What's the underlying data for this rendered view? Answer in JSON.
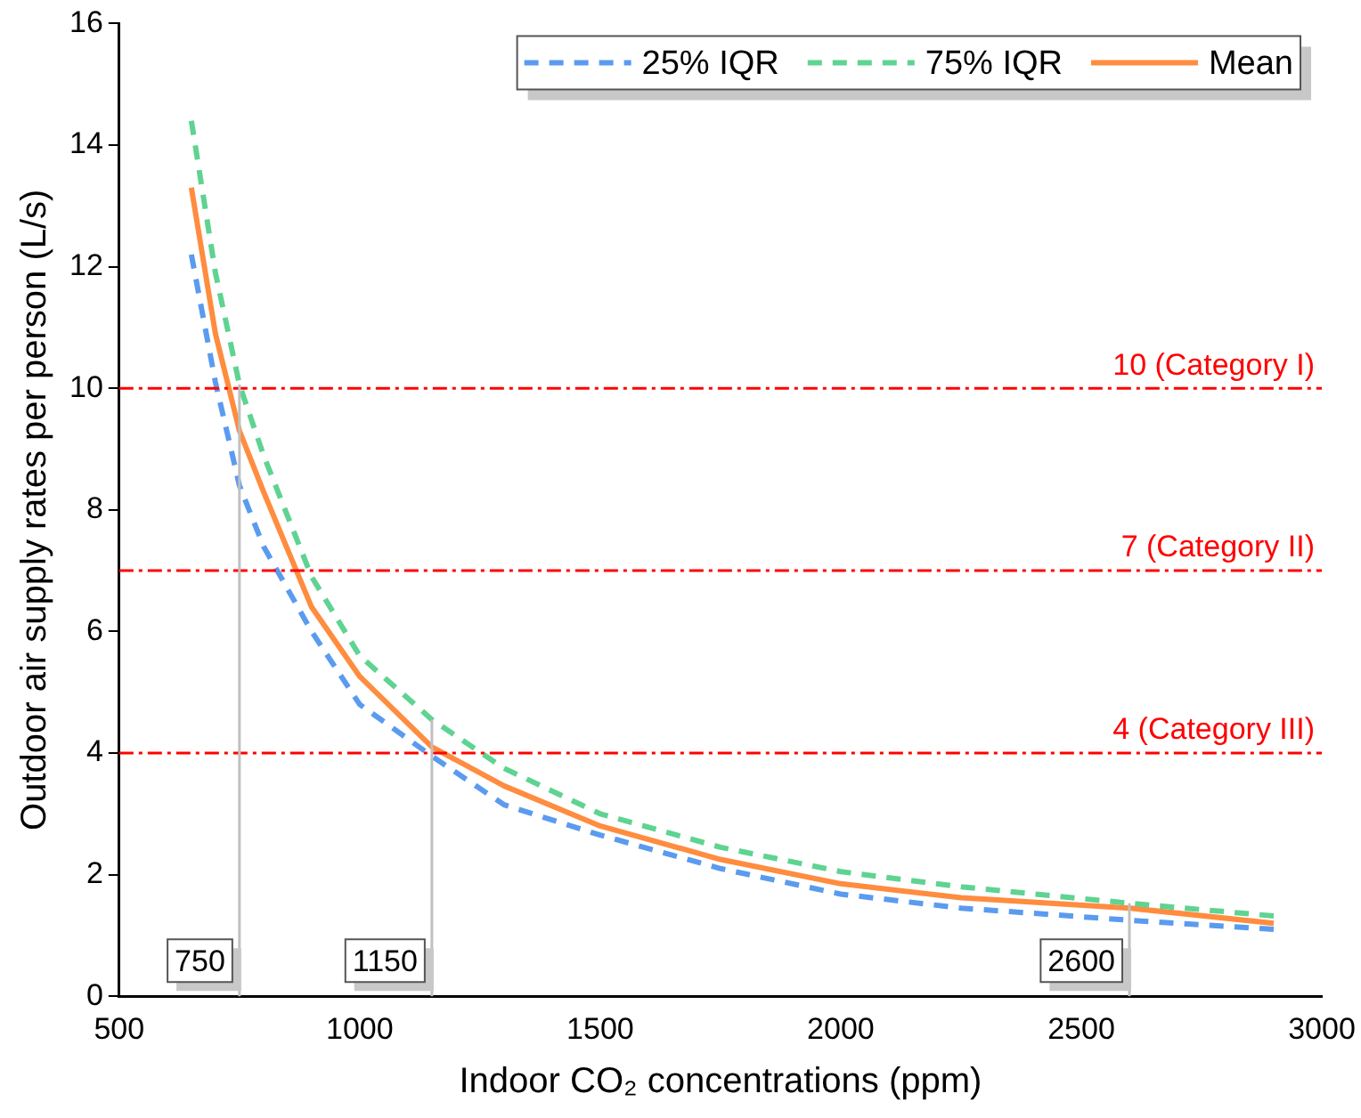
{
  "chart_data": {
    "type": "line",
    "xlabel": "Indoor CO₂ concentrations (ppm)",
    "ylabel": "Outdoor air supply rates per person (L/s)",
    "x": [
      650,
      700,
      750,
      800,
      900,
      1000,
      1150,
      1300,
      1500,
      1750,
      2000,
      2250,
      2600,
      2900
    ],
    "series": [
      {
        "name": "25% IQR",
        "color": "#5b9bef",
        "line_style": "dashed",
        "values": [
          12.2,
          10.1,
          8.4,
          7.4,
          6.0,
          4.8,
          3.95,
          3.15,
          2.65,
          2.1,
          1.68,
          1.45,
          1.25,
          1.1
        ]
      },
      {
        "name": "75% IQR",
        "color": "#5fd391",
        "line_style": "dashed",
        "values": [
          14.4,
          11.9,
          10.06,
          8.9,
          6.9,
          5.6,
          4.55,
          3.75,
          3.0,
          2.45,
          2.05,
          1.8,
          1.53,
          1.32
        ]
      },
      {
        "name": "Mean",
        "color": "#ff8c3f",
        "line_style": "solid",
        "values": [
          13.3,
          10.9,
          9.3,
          8.3,
          6.4,
          5.26,
          4.1,
          3.46,
          2.8,
          2.25,
          1.85,
          1.62,
          1.45,
          1.2
        ]
      }
    ],
    "xlim": [
      500,
      3000
    ],
    "xticks": [
      500,
      1000,
      1500,
      2000,
      2500,
      3000
    ],
    "ylim": [
      0,
      16
    ],
    "yticks": [
      0,
      2,
      4,
      6,
      8,
      10,
      12,
      14,
      16
    ],
    "ref_lines": [
      {
        "axis": "y",
        "value": 10,
        "label": "10 (Category I)",
        "color": "#ff0000",
        "line_style": "dashdot"
      },
      {
        "axis": "y",
        "value": 7,
        "label": "7 (Category II)",
        "color": "#ff0000",
        "line_style": "dashdot"
      },
      {
        "axis": "y",
        "value": 4,
        "label": "4 (Category III)",
        "color": "#ff0000",
        "line_style": "dashdot"
      },
      {
        "axis": "x",
        "value": 750,
        "label": "750",
        "color": "#c0c0c0"
      },
      {
        "axis": "x",
        "value": 1150,
        "label": "1150",
        "color": "#c0c0c0"
      },
      {
        "axis": "x",
        "value": 2600,
        "label": "2600",
        "color": "#c0c0c0"
      }
    ],
    "grid": false,
    "legend": "top right",
    "marker": "none"
  }
}
